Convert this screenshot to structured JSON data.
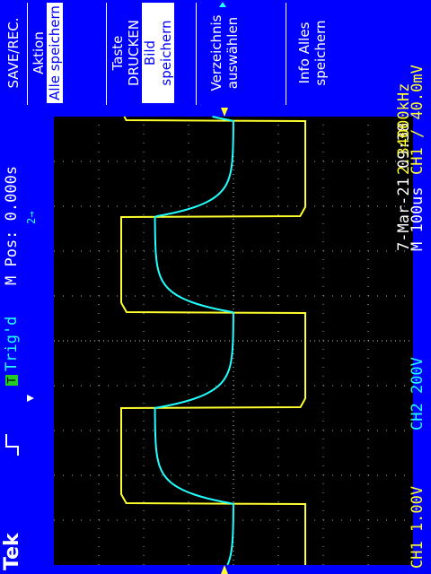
{
  "brand": "Tek",
  "status": {
    "trigger_state": "Trig'd",
    "trigger_badge": "T"
  },
  "horizontal": {
    "position_label": "M Pos: 0.000s",
    "timebase_label": "M 100us"
  },
  "channels": {
    "ch1": {
      "label": "CH1 1.00V",
      "color": "#ffff2e"
    },
    "ch2": {
      "label": "CH2 200V",
      "color": "#22ffff"
    }
  },
  "trigger": {
    "readout": "CH1 ∕ 40.0mV",
    "frequency": "2.34000kHz"
  },
  "datetime": "7-Mar-21 09:38",
  "menu": {
    "title": "SAVE/REC.",
    "items": [
      {
        "label": "Aktion",
        "boxed": "Alle speichern"
      },
      {
        "label": "Taste DRUCKEN",
        "boxed": "Bild speichern"
      },
      {
        "label": "Verzeichnis auswählen"
      },
      {
        "label": "Info Alles speichern"
      }
    ]
  },
  "chart_data": {
    "type": "line",
    "title": "",
    "xlabel": "",
    "ylabel": "",
    "grid": true,
    "x_divisions": 10,
    "y_divisions": 8,
    "time_per_div_us": 100,
    "series": [
      {
        "name": "CH1",
        "color": "#ffff2e",
        "volts_per_div": 1.0,
        "shape": "square",
        "period_us": 427,
        "high_div": 2.5,
        "low_div": -1.6,
        "duty": 0.5
      },
      {
        "name": "CH2",
        "color": "#22ffff",
        "volts_per_div": 200,
        "shape": "rc-charge",
        "period_us": 427,
        "high_div": 1.75,
        "low_div": -0.0,
        "duty": 0.5
      }
    ]
  }
}
